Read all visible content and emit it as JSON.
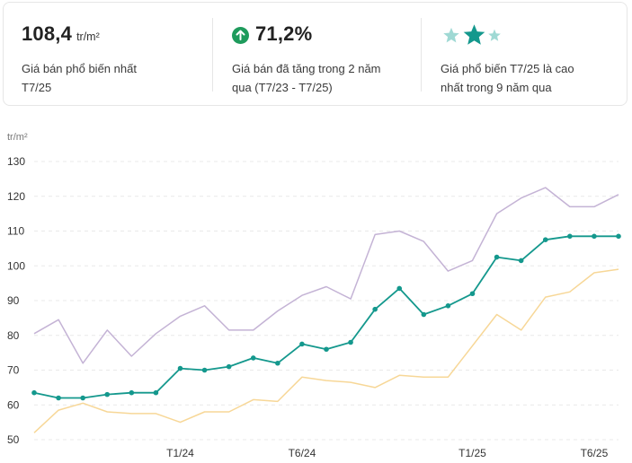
{
  "stats": {
    "price": {
      "value": "108,4",
      "unit": "tr/m²",
      "desc_line1": "Giá bán phổ biến nhất",
      "desc_line2": "T7/25"
    },
    "growth": {
      "value": "71,2%",
      "desc_line1": "Giá bán đã tăng trong 2 năm",
      "desc_line2": "qua (T7/23 - T7/25)"
    },
    "rank": {
      "stars_total": 3,
      "stars_highlight": 1,
      "desc_line1": "Giá phổ biến T7/25 là cao",
      "desc_line2": "nhất trong 9 năm qua"
    }
  },
  "colors": {
    "main": "#14988d",
    "upper": "#c4b3d5",
    "lower": "#f7d797",
    "grid": "#e9e9e9",
    "up_icon": "#1e9b5c",
    "star": "#14988d",
    "star_light": "#9fd9d4"
  },
  "icons": {
    "growth": "arrow-up-circle-icon",
    "rank": "star-icon"
  },
  "chart_data": {
    "type": "line",
    "ylabel": "tr/m²",
    "ylim": [
      50,
      130
    ],
    "yticks": [
      50,
      60,
      70,
      80,
      90,
      100,
      110,
      120,
      130
    ],
    "grid": true,
    "x": [
      "T7/23",
      "T8/23",
      "T9/23",
      "T10/23",
      "T11/23",
      "T12/23",
      "T1/24",
      "T2/24",
      "T3/24",
      "T4/24",
      "T5/24",
      "T6/24",
      "T7/24",
      "T8/24",
      "T9/24",
      "T10/24",
      "T11/24",
      "T12/24",
      "T1/25",
      "T2/25",
      "T3/25",
      "T4/25",
      "T5/25",
      "T6/25",
      "T7/25"
    ],
    "xtick_labels": [
      "T1/24",
      "T6/24",
      "T1/25",
      "T6/25"
    ],
    "series": [
      {
        "role": "upper",
        "values": [
          80.5,
          84.5,
          72,
          81.5,
          74,
          80.5,
          85.5,
          88.5,
          81.5,
          81.5,
          87,
          91.5,
          94,
          90.5,
          109,
          110,
          107,
          98.5,
          101.5,
          115,
          119.5,
          122.5,
          117,
          117,
          120.5
        ]
      },
      {
        "role": "main",
        "values": [
          63.5,
          62,
          62,
          63,
          63.5,
          63.5,
          70.5,
          70,
          71,
          73.5,
          72,
          77.5,
          76,
          78,
          87.5,
          93.5,
          86,
          88.5,
          92,
          102.5,
          101.5,
          107.5,
          108.5,
          108.5,
          108.5
        ]
      },
      {
        "role": "lower",
        "values": [
          52,
          58.5,
          60.5,
          58,
          57.5,
          57.5,
          55,
          58,
          58,
          61.5,
          61,
          68,
          67,
          66.5,
          65,
          68.5,
          68,
          68,
          77,
          86,
          81.5,
          91,
          92.5,
          98,
          99
        ]
      }
    ]
  }
}
